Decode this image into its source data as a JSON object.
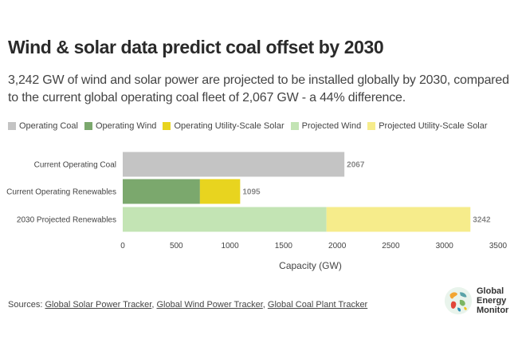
{
  "title": "Wind & solar data predict coal offset by 2030",
  "subtitle": "3,242 GW of wind and solar power are projected to be installed globally by 2030, compared to the current global operating coal fleet of 2,067 GW - a 44% difference.",
  "legend": [
    {
      "label": "Operating Coal",
      "color": "#c4c4c4"
    },
    {
      "label": "Operating Wind",
      "color": "#7ba86d"
    },
    {
      "label": "Operating Utility-Scale Solar",
      "color": "#e8d41f"
    },
    {
      "label": "Projected Wind",
      "color": "#c3e4b4"
    },
    {
      "label": "Projected Utility-Scale Solar",
      "color": "#f6ec8b"
    }
  ],
  "chart_data": {
    "type": "bar",
    "orientation": "horizontal",
    "stacked": true,
    "categories": [
      "Current Operating Coal",
      "Current Operating Renewables",
      "2030 Projected Renewables"
    ],
    "series": [
      {
        "name": "Operating Coal",
        "color": "#c4c4c4",
        "values": [
          2067,
          0,
          0
        ]
      },
      {
        "name": "Operating Wind",
        "color": "#7ba86d",
        "values": [
          0,
          720,
          0
        ]
      },
      {
        "name": "Operating Utility-Scale Solar",
        "color": "#e8d41f",
        "values": [
          0,
          375,
          0
        ]
      },
      {
        "name": "Projected Wind",
        "color": "#c3e4b4",
        "values": [
          0,
          0,
          1900
        ]
      },
      {
        "name": "Projected Utility-Scale Solar",
        "color": "#f6ec8b",
        "values": [
          0,
          0,
          1342
        ]
      }
    ],
    "totals": [
      "2067",
      "1095",
      "3242"
    ],
    "xlabel": "Capacity (GW)",
    "xlim": [
      0,
      3500
    ],
    "xticks": [
      0,
      500,
      1000,
      1500,
      2000,
      2500,
      3000,
      3500
    ],
    "grid": false,
    "legend_position": "top-left"
  },
  "sources": {
    "prefix": "Sources: ",
    "links": [
      "Global Solar Power Tracker",
      "Global Wind Power Tracker",
      "Global Coal Plant Tracker"
    ],
    "separator": ", "
  },
  "logo": {
    "lines": [
      "Global",
      "Energy",
      "Monitor"
    ]
  }
}
